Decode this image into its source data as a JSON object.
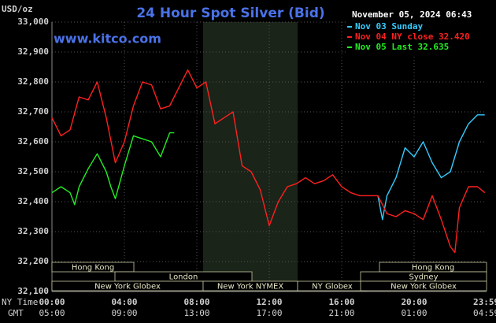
{
  "chart_data": {
    "type": "line",
    "title": "24 Hour Spot Silver (Bid)",
    "y_unit": "USD/oz",
    "timestamp": "November 05, 2024 06:43",
    "watermark": "www.kitco.com",
    "x_axis_labels": [
      "NY Time",
      "GMT"
    ],
    "xlim": [
      0,
      24
    ],
    "xticks": [
      {
        "value": 0,
        "label": "00:00"
      },
      {
        "value": 4,
        "label": "04:00"
      },
      {
        "value": 8,
        "label": "08:00"
      },
      {
        "value": 12,
        "label": "12:00"
      },
      {
        "value": 16,
        "label": "16:00"
      },
      {
        "value": 20,
        "label": "20:00"
      },
      {
        "value": 23.98,
        "label": "23:59"
      }
    ],
    "x_gmt_labels": [
      "05:00",
      "09:00",
      "13:00",
      "17:00",
      "21:00",
      "01:00",
      "04:59"
    ],
    "ylim": [
      32.1,
      33.0
    ],
    "yticks": [
      {
        "value": 32.1,
        "label": "32,100"
      },
      {
        "value": 32.2,
        "label": "32,200"
      },
      {
        "value": 32.3,
        "label": "32,300"
      },
      {
        "value": 32.4,
        "label": "32,400"
      },
      {
        "value": 32.5,
        "label": "32,500"
      },
      {
        "value": 32.6,
        "label": "32,600"
      },
      {
        "value": 32.7,
        "label": "32,700"
      },
      {
        "value": 32.8,
        "label": "32,800"
      },
      {
        "value": 32.9,
        "label": "32,900"
      },
      {
        "value": 33.0,
        "label": "33,000"
      }
    ],
    "grid": true,
    "series": [
      {
        "name": "Nov 03 Sunday",
        "color": "#33ccff",
        "x": [
          18.0,
          18.25,
          18.5,
          19.0,
          19.5,
          20.0,
          20.5,
          21.0,
          21.5,
          22.0,
          22.5,
          23.0,
          23.5,
          23.9
        ],
        "values": [
          32.42,
          32.34,
          32.42,
          32.48,
          32.58,
          32.55,
          32.6,
          32.53,
          32.48,
          32.5,
          32.6,
          32.66,
          32.69,
          32.69
        ]
      },
      {
        "name": "Nov 04 NY close 32.420",
        "color": "#ff2020",
        "x": [
          0,
          0.5,
          1.0,
          1.5,
          2.0,
          2.5,
          3.0,
          3.5,
          4.0,
          4.5,
          5.0,
          5.5,
          6.0,
          6.5,
          7.0,
          7.5,
          8.0,
          8.5,
          9.0,
          9.5,
          10.0,
          10.5,
          11.0,
          11.5,
          12.0,
          12.5,
          13.0,
          13.5,
          14.0,
          14.5,
          15.0,
          15.5,
          16.0,
          16.5,
          17.0,
          17.5,
          18.0,
          18.5,
          19.0,
          19.5,
          20.0,
          20.5,
          21.0,
          21.5,
          22.0,
          22.25,
          22.5,
          23.0,
          23.5,
          23.9
        ],
        "values": [
          32.68,
          32.62,
          32.64,
          32.75,
          32.74,
          32.8,
          32.68,
          32.53,
          32.6,
          32.72,
          32.8,
          32.79,
          32.71,
          32.72,
          32.78,
          32.84,
          32.78,
          32.8,
          32.66,
          32.68,
          32.7,
          32.52,
          32.5,
          32.44,
          32.32,
          32.4,
          32.45,
          32.46,
          32.48,
          32.46,
          32.47,
          32.49,
          32.45,
          32.43,
          32.42,
          32.42,
          32.42,
          32.36,
          32.35,
          32.37,
          32.36,
          32.34,
          32.42,
          32.34,
          32.25,
          32.23,
          32.38,
          32.45,
          32.45,
          32.43
        ]
      },
      {
        "name": "Nov 05 Last 32.635",
        "color": "#22ee22",
        "x": [
          0,
          0.5,
          1.0,
          1.25,
          1.5,
          2.0,
          2.5,
          3.0,
          3.25,
          3.5,
          4.0,
          4.5,
          5.0,
          5.5,
          6.0,
          6.5,
          6.75
        ],
        "values": [
          32.43,
          32.45,
          32.43,
          32.39,
          32.45,
          32.51,
          32.56,
          32.5,
          32.45,
          32.41,
          32.52,
          32.62,
          32.61,
          32.6,
          32.55,
          32.63,
          32.63
        ]
      }
    ],
    "markets": [
      "Hong Kong",
      "London",
      "New York Globex",
      "New York NYMEX",
      "NY Globex",
      "Hong Kong",
      "Sydney",
      "New York Globex"
    ]
  }
}
